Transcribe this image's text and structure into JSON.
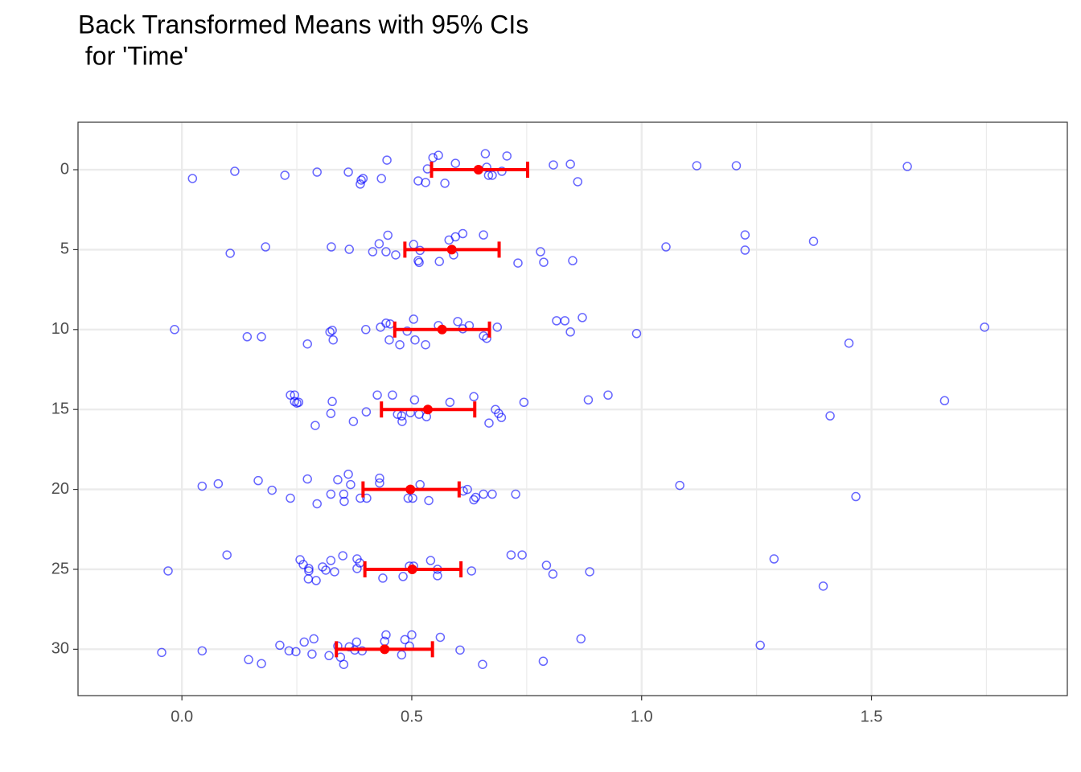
{
  "chart_data": {
    "type": "scatter",
    "title": [
      "Back Transformed Means with 95% CIs",
      " for 'Time'"
    ],
    "xlim": [
      -0.226,
      1.926
    ],
    "ylim": [
      -2.97,
      32.9
    ],
    "y_reversed": true,
    "grid": true,
    "xticks": [
      {
        "value": 0,
        "label": "0.0"
      },
      0.5,
      {
        "value": 1,
        "label": "1.0"
      },
      1.5
    ],
    "xminor": [
      0.25,
      0.75,
      1.25,
      1.75
    ],
    "yticks": [
      0,
      5,
      10,
      15,
      20,
      25,
      30
    ],
    "points": {
      "color": "#0000ff",
      "x": [
        0.446,
        0.546,
        0.558,
        0.66,
        0.707,
        0.595,
        0.534,
        0.663,
        0.696,
        0.667,
        0.675,
        0.808,
        0.845,
        1.12,
        1.206,
        1.578,
        0.115,
        0.023,
        0.224,
        0.294,
        0.362,
        0.394,
        0.39,
        0.434,
        0.388,
        0.514,
        0.53,
        0.572,
        0.861,
        0.448,
        0.656,
        0.611,
        0.595,
        0.581,
        0.429,
        0.504,
        0.518,
        0.444,
        0.415,
        0.465,
        0.514,
        0.516,
        0.56,
        0.591,
        0.325,
        0.364,
        0.182,
        0.105,
        0.731,
        0.78,
        0.787,
        0.85,
        1.053,
        1.225,
        1.225,
        1.374,
        -0.016,
        0.142,
        0.173,
        0.273,
        0.322,
        0.327,
        0.4,
        0.329,
        0.432,
        0.444,
        0.453,
        0.451,
        0.474,
        0.49,
        0.504,
        0.507,
        0.53,
        0.558,
        0.611,
        0.6,
        0.625,
        0.656,
        0.663,
        0.686,
        0.815,
        0.833,
        0.871,
        0.845,
        0.989,
        1.451,
        1.746,
        0.236,
        0.245,
        0.245,
        0.25,
        0.254,
        0.327,
        0.29,
        0.324,
        0.373,
        0.401,
        0.425,
        0.458,
        0.469,
        0.478,
        0.479,
        0.497,
        0.506,
        0.516,
        0.532,
        0.583,
        0.635,
        0.668,
        0.682,
        0.689,
        0.695,
        0.744,
        0.884,
        0.927,
        1.41,
        1.659,
        0.044,
        0.079,
        0.166,
        0.196,
        0.236,
        0.273,
        0.294,
        0.324,
        0.339,
        0.352,
        0.353,
        0.362,
        0.367,
        0.388,
        0.402,
        0.43,
        0.43,
        0.492,
        0.502,
        0.518,
        0.537,
        0.612,
        0.621,
        0.635,
        0.639,
        0.656,
        0.675,
        0.726,
        1.083,
        1.466,
        -0.03,
        0.098,
        0.257,
        0.264,
        0.276,
        0.276,
        0.275,
        0.292,
        0.306,
        0.313,
        0.324,
        0.332,
        0.35,
        0.381,
        0.387,
        0.381,
        0.437,
        0.481,
        0.495,
        0.504,
        0.541,
        0.556,
        0.556,
        0.63,
        0.716,
        0.74,
        0.793,
        0.807,
        0.887,
        1.288,
        1.395,
        -0.044,
        0.044,
        0.145,
        0.173,
        0.213,
        0.233,
        0.248,
        0.266,
        0.283,
        0.287,
        0.32,
        0.339,
        0.345,
        0.352,
        0.364,
        0.376,
        0.38,
        0.392,
        0.441,
        0.444,
        0.478,
        0.485,
        0.495,
        0.5,
        0.562,
        0.605,
        0.654,
        0.786,
        0.868,
        1.258
      ],
      "y": [
        -0.6,
        -0.75,
        -0.9,
        -1.0,
        -0.86,
        -0.4,
        -0.05,
        -0.15,
        0.1,
        0.35,
        0.35,
        -0.3,
        -0.35,
        -0.25,
        -0.25,
        -0.2,
        0.1,
        0.55,
        0.35,
        0.15,
        0.15,
        0.55,
        0.65,
        0.55,
        0.9,
        0.7,
        0.8,
        0.85,
        0.75,
        4.1,
        4.08,
        4.0,
        4.2,
        4.4,
        4.63,
        4.68,
        5.05,
        5.13,
        5.13,
        5.33,
        5.69,
        5.8,
        5.74,
        5.33,
        4.83,
        4.98,
        4.83,
        5.23,
        5.84,
        5.13,
        5.79,
        5.69,
        4.83,
        4.08,
        5.03,
        4.48,
        10,
        10.45,
        10.45,
        10.9,
        10.15,
        10.05,
        10,
        10.65,
        9.85,
        9.6,
        9.65,
        10.65,
        10.95,
        10.1,
        9.35,
        10.65,
        10.95,
        9.75,
        9.95,
        9.5,
        9.75,
        10.4,
        10.55,
        9.85,
        9.45,
        9.45,
        9.25,
        10.15,
        10.25,
        10.85,
        9.85,
        14.1,
        14.1,
        14.5,
        14.6,
        14.55,
        14.5,
        16.0,
        15.25,
        15.75,
        15.15,
        14.1,
        14.1,
        15.3,
        15.4,
        15.75,
        15.2,
        14.4,
        15.3,
        15.45,
        14.55,
        14.2,
        15.85,
        15.0,
        15.25,
        15.5,
        14.55,
        14.4,
        14.1,
        15.4,
        14.45,
        19.8,
        19.65,
        19.45,
        20.05,
        20.55,
        19.35,
        20.9,
        20.3,
        19.4,
        20.3,
        20.75,
        19.05,
        19.7,
        20.55,
        20.55,
        19.3,
        19.6,
        20.55,
        20.55,
        19.7,
        20.7,
        20.1,
        20.0,
        20.65,
        20.5,
        20.3,
        20.3,
        20.3,
        19.75,
        20.45,
        25.1,
        24.1,
        24.4,
        24.7,
        24.95,
        25.1,
        25.6,
        25.7,
        24.85,
        25.05,
        24.45,
        25.15,
        24.15,
        24.35,
        24.6,
        24.95,
        25.55,
        25.45,
        24.8,
        24.8,
        24.45,
        25.0,
        25.4,
        25.1,
        24.1,
        24.1,
        24.75,
        25.3,
        25.15,
        24.35,
        26.05,
        30.2,
        30.1,
        30.65,
        30.9,
        29.75,
        30.1,
        30.15,
        29.55,
        30.3,
        29.35,
        30.4,
        29.8,
        30.5,
        30.95,
        29.85,
        30.05,
        29.55,
        30.1,
        29.5,
        29.1,
        30.35,
        29.4,
        29.8,
        29.1,
        29.25,
        30.05,
        30.95,
        30.75,
        29.35,
        29.75
      ]
    },
    "means": {
      "color": "#ff0000",
      "y": [
        0,
        5,
        10,
        15,
        20,
        25,
        30
      ],
      "x": [
        0.645,
        0.587,
        0.566,
        0.535,
        0.497,
        0.501,
        0.441
      ],
      "lower": [
        0.543,
        0.485,
        0.463,
        0.434,
        0.394,
        0.398,
        0.336
      ],
      "upper": [
        0.752,
        0.69,
        0.669,
        0.637,
        0.603,
        0.607,
        0.545
      ]
    }
  }
}
